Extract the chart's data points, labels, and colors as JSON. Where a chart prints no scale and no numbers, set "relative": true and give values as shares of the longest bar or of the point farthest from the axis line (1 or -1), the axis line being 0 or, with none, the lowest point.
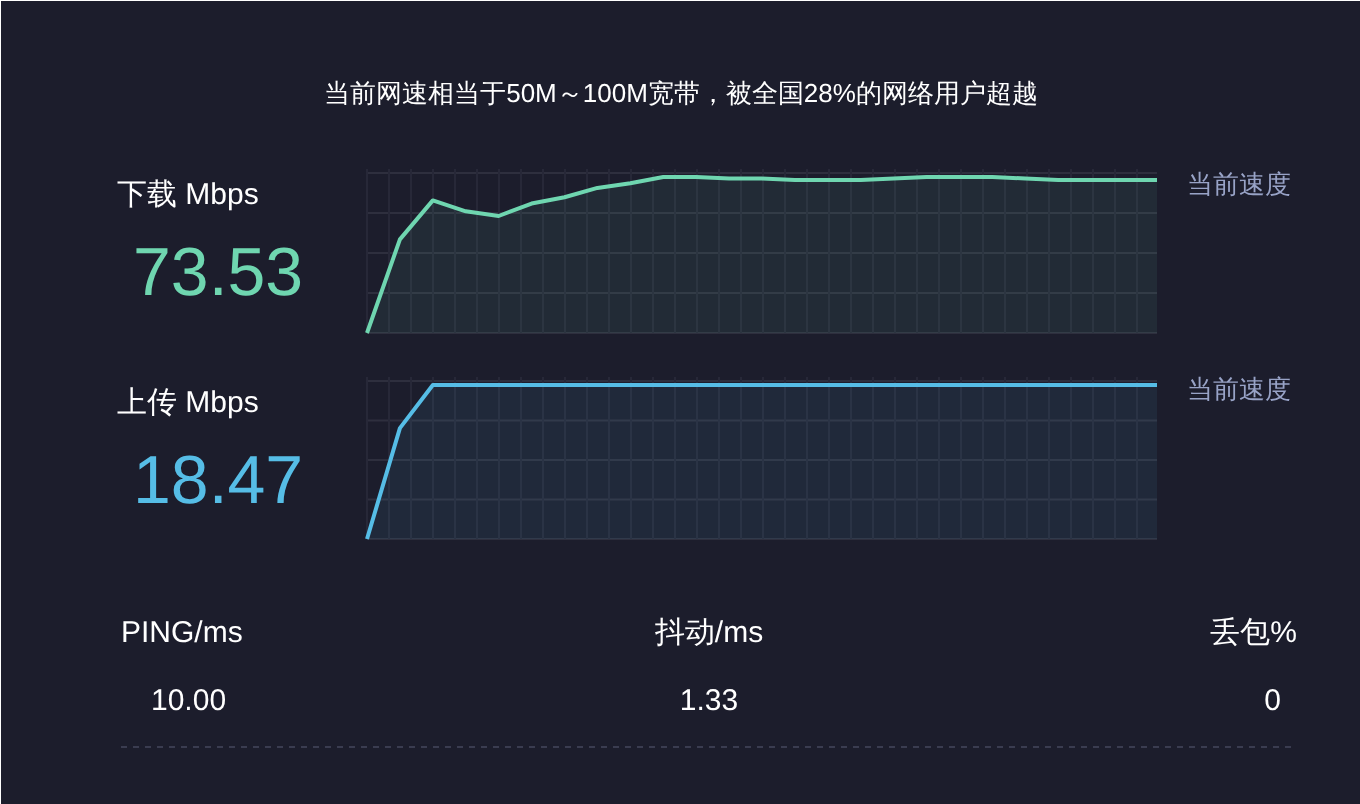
{
  "chart_data": [
    {
      "type": "other",
      "title": "当前网速相当于50M～100M宽带，被全国28%的网络用户超越",
      "annotations": [
        "PING/ms",
        "10.00",
        "抖动/ms",
        "1.33",
        "丢包%",
        "0"
      ]
    },
    {
      "type": "line",
      "title": "下载 Mbps",
      "relative": true,
      "grid": true,
      "annotations": [
        "73.53"
      ],
      "categories": [
        null,
        null,
        null,
        null,
        null,
        null,
        null,
        null,
        null,
        null,
        null,
        null,
        null,
        null,
        null,
        null,
        null,
        null,
        null,
        null,
        null,
        null,
        null,
        null,
        null
      ],
      "series": [
        {
          "name": "当前速度",
          "color": "#6fd6b0",
          "values": [
            0,
            0.6,
            0.85,
            0.78,
            0.75,
            0.83,
            0.87,
            0.93,
            0.96,
            1.0,
            1.0,
            0.99,
            0.99,
            0.98,
            0.98,
            0.98,
            0.99,
            1.0,
            1.0,
            1.0,
            0.99,
            0.98,
            0.98,
            0.98,
            0.98
          ]
        }
      ]
    },
    {
      "type": "line",
      "title": "上传 Mbps",
      "relative": true,
      "grid": true,
      "annotations": [
        "18.47"
      ],
      "categories": [
        null,
        null,
        null,
        null,
        null,
        null,
        null,
        null,
        null,
        null,
        null,
        null,
        null,
        null,
        null,
        null,
        null,
        null,
        null,
        null,
        null,
        null,
        null,
        null,
        null
      ],
      "series": [
        {
          "name": "当前速度",
          "color": "#56bde6",
          "values": [
            0,
            0.72,
            1.0,
            1.0,
            1.0,
            1.0,
            1.0,
            1.0,
            1.0,
            1.0,
            1.0,
            1.0,
            1.0,
            1.0,
            1.0,
            1.0,
            1.0,
            1.0,
            1.0,
            1.0,
            1.0,
            1.0,
            1.0,
            1.0,
            1.0
          ]
        }
      ]
    }
  ]
}
